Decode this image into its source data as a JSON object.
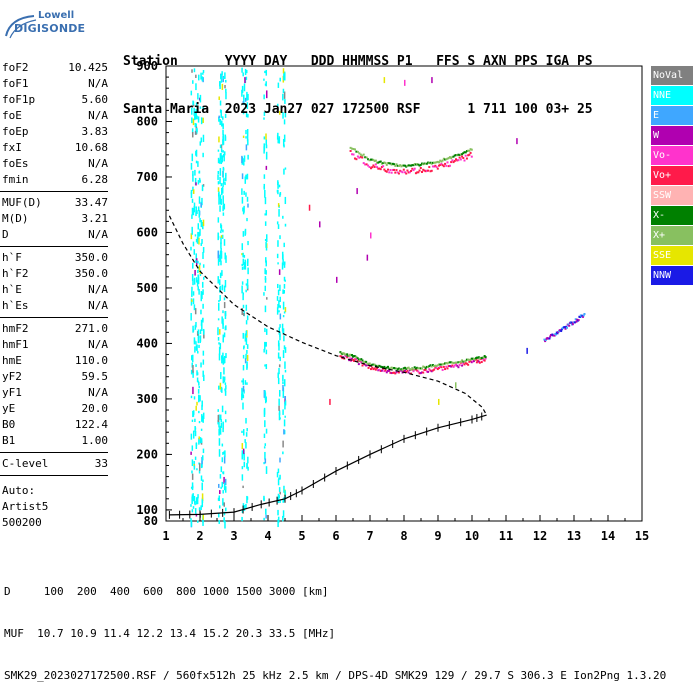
{
  "logo": {
    "line1": "Lowell",
    "line2": "DIGISONDE"
  },
  "header": {
    "labels": [
      "Station",
      "YYYY DAY",
      "DDD HHMMSS P1",
      "FFS S AXN PPS IGA PS"
    ],
    "line1": "Station      YYYY DAY   DDD HHMMSS P1   FFS S AXN PPS IGA PS",
    "line2": "Santa Maria  2023 Jan27 027 172500 RSF      1 711 100 03+ 25"
  },
  "parameters": [
    {
      "group": [
        {
          "name": "foF2",
          "value": "10.425"
        },
        {
          "name": "foF1",
          "value": "N/A"
        },
        {
          "name": "foF1p",
          "value": "5.60"
        },
        {
          "name": "foE",
          "value": "N/A"
        },
        {
          "name": "foEp",
          "value": "3.83"
        },
        {
          "name": "fxI",
          "value": "10.68"
        },
        {
          "name": "foEs",
          "value": "N/A"
        },
        {
          "name": "fmin",
          "value": "6.28"
        }
      ]
    },
    {
      "group": [
        {
          "name": "MUF(D)",
          "value": "33.47"
        },
        {
          "name": "M(D)",
          "value": "3.21"
        },
        {
          "name": "D",
          "value": "N/A"
        }
      ]
    },
    {
      "group": [
        {
          "name": "h`F",
          "value": "350.0"
        },
        {
          "name": "h`F2",
          "value": "350.0"
        },
        {
          "name": "h`E",
          "value": "N/A"
        },
        {
          "name": "h`Es",
          "value": "N/A"
        }
      ]
    },
    {
      "group": [
        {
          "name": "hmF2",
          "value": "271.0"
        },
        {
          "name": "hmF1",
          "value": "N/A"
        },
        {
          "name": "hmE",
          "value": "110.0"
        },
        {
          "name": "yF2",
          "value": "59.5"
        },
        {
          "name": "yF1",
          "value": "N/A"
        },
        {
          "name": "yE",
          "value": "20.0"
        },
        {
          "name": "B0",
          "value": "122.4"
        },
        {
          "name": "B1",
          "value": "1.00"
        }
      ]
    },
    {
      "group": [
        {
          "name": "C-level",
          "value": "33"
        }
      ]
    }
  ],
  "auto_lines": [
    "Auto:",
    "Artist5",
    "500200"
  ],
  "legend": [
    {
      "label": "NoVal",
      "color": "#808080"
    },
    {
      "label": "NNE",
      "color": "#00ffff"
    },
    {
      "label": "E",
      "color": "#3fa7ff"
    },
    {
      "label": "W",
      "color": "#b000b0"
    },
    {
      "label": "Vo-",
      "color": "#ff33cc"
    },
    {
      "label": "Vo+",
      "color": "#ff1a4a"
    },
    {
      "label": "SSW",
      "color": "#ffb3b3"
    },
    {
      "label": "X-",
      "color": "#008000"
    },
    {
      "label": "X+",
      "color": "#88c060"
    },
    {
      "label": "SSE",
      "color": "#e6e600"
    },
    {
      "label": "NNW",
      "color": "#1a1ae6"
    }
  ],
  "footer": {
    "line1": "D     100  200  400  600  800 1000 1500 3000 [km]",
    "line2": "MUF  10.7 10.9 11.4 12.2 13.4 15.2 20.3 33.5 [MHz]",
    "line3": "SMK29_2023027172500.RSF / 560fx512h 25 kHz 2.5 km / DPS-4D SMK29 129 / 29.7 S 306.3 E Ion2Png 1.3.20"
  },
  "chart_data": {
    "type": "scatter",
    "xlim": [
      1,
      15
    ],
    "ylim": [
      80,
      900
    ],
    "xticks": [
      1,
      2,
      3,
      4,
      5,
      6,
      7,
      8,
      9,
      10,
      11,
      12,
      13,
      14,
      15
    ],
    "yticks": [
      100,
      200,
      300,
      400,
      500,
      600,
      700,
      800,
      900
    ],
    "xticks_minor": 0.5,
    "yticks_minor": 20,
    "grid": false,
    "trace_F2_ordinary": [
      {
        "x": 6.1,
        "y": 380
      },
      {
        "x": 6.5,
        "y": 372
      },
      {
        "x": 7.0,
        "y": 357
      },
      {
        "x": 7.5,
        "y": 352
      },
      {
        "x": 8.0,
        "y": 350
      },
      {
        "x": 8.5,
        "y": 352
      },
      {
        "x": 9.0,
        "y": 357
      },
      {
        "x": 9.5,
        "y": 362
      },
      {
        "x": 10.0,
        "y": 368
      },
      {
        "x": 10.4,
        "y": 372
      }
    ],
    "trace_F2_multihop": [
      {
        "x": 6.4,
        "y": 745
      },
      {
        "x": 7.0,
        "y": 722
      },
      {
        "x": 7.5,
        "y": 715
      },
      {
        "x": 8.0,
        "y": 712
      },
      {
        "x": 8.5,
        "y": 714
      },
      {
        "x": 9.0,
        "y": 720
      },
      {
        "x": 9.5,
        "y": 730
      },
      {
        "x": 10.0,
        "y": 742
      }
    ],
    "trace_X_mode": [
      {
        "x": 12.1,
        "y": 408
      },
      {
        "x": 12.4,
        "y": 418
      },
      {
        "x": 12.7,
        "y": 430
      },
      {
        "x": 13.0,
        "y": 442
      },
      {
        "x": 13.3,
        "y": 455
      }
    ],
    "profile_dashed": [
      {
        "x": 1.1,
        "y": 630
      },
      {
        "x": 1.5,
        "y": 580
      },
      {
        "x": 2.0,
        "y": 530
      },
      {
        "x": 3.0,
        "y": 470
      },
      {
        "x": 4.0,
        "y": 430
      },
      {
        "x": 5.0,
        "y": 402
      },
      {
        "x": 6.0,
        "y": 378
      },
      {
        "x": 7.0,
        "y": 360
      },
      {
        "x": 8.0,
        "y": 348
      },
      {
        "x": 9.0,
        "y": 332
      },
      {
        "x": 9.8,
        "y": 310
      },
      {
        "x": 10.3,
        "y": 285
      },
      {
        "x": 10.43,
        "y": 271
      }
    ],
    "profile_solid": [
      {
        "x": 1.1,
        "y": 91
      },
      {
        "x": 2.0,
        "y": 92
      },
      {
        "x": 3.0,
        "y": 96
      },
      {
        "x": 3.8,
        "y": 110
      },
      {
        "x": 4.5,
        "y": 120
      },
      {
        "x": 5.0,
        "y": 135
      },
      {
        "x": 6.0,
        "y": 170
      },
      {
        "x": 7.0,
        "y": 200
      },
      {
        "x": 8.0,
        "y": 228
      },
      {
        "x": 9.0,
        "y": 248
      },
      {
        "x": 10.0,
        "y": 263
      },
      {
        "x": 10.43,
        "y": 271
      }
    ],
    "noise_columns_mhz": [
      1.75,
      1.85,
      1.95,
      2.05,
      2.55,
      2.62,
      2.7,
      3.25,
      3.35,
      3.9,
      4.3,
      4.45
    ]
  }
}
